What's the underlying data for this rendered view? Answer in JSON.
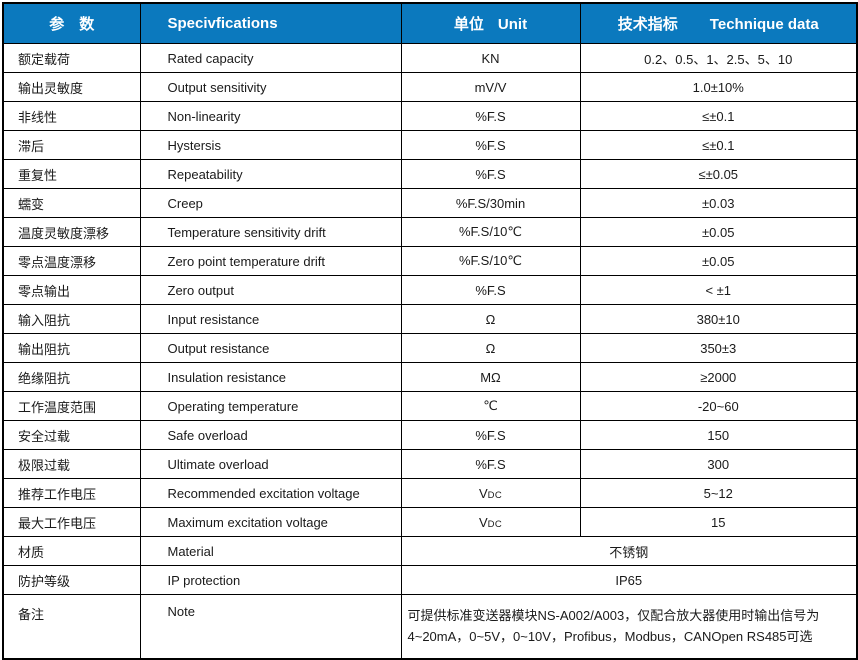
{
  "colors": {
    "header_bg": "#0b79be",
    "header_text": "#ffffff",
    "border": "#000000",
    "body_text": "#1a1a1a"
  },
  "table": {
    "headers": {
      "param": {
        "zh": "参　数"
      },
      "spec": {
        "en": "Specivfications"
      },
      "unit": {
        "zh": "单位",
        "en": "Unit"
      },
      "data": {
        "zh": "技术指标",
        "en": "Technique data"
      }
    },
    "rows": [
      {
        "param": "额定载荷",
        "spec": "Rated capacity",
        "unit": "KN",
        "value": "0.2、0.5、1、2.5、5、10"
      },
      {
        "param": "输出灵敏度",
        "spec": "Output sensitivity",
        "unit": "mV/V",
        "value": "1.0±10%"
      },
      {
        "param": "非线性",
        "spec": "Non-linearity",
        "unit": "%F.S",
        "value": "≤±0.1"
      },
      {
        "param": "滞后",
        "spec": "Hystersis",
        "unit": "%F.S",
        "value": "≤±0.1"
      },
      {
        "param": "重复性",
        "spec": "Repeatability",
        "unit": "%F.S",
        "value": "≤±0.05"
      },
      {
        "param": "蠕变",
        "spec": "Creep",
        "unit": "%F.S/30min",
        "value": "±0.03"
      },
      {
        "param": "温度灵敏度漂移",
        "spec": "Temperature sensitivity drift",
        "unit": "%F.S/10℃",
        "value": "±0.05"
      },
      {
        "param": "零点温度漂移",
        "spec": "Zero point temperature drift",
        "unit": "%F.S/10℃",
        "value": "±0.05"
      },
      {
        "param": "零点输出",
        "spec": "Zero output",
        "unit": "%F.S",
        "value": "< ±1"
      },
      {
        "param": "输入阻抗",
        "spec": "Input resistance",
        "unit": "Ω",
        "value": "380±10"
      },
      {
        "param": "输出阻抗",
        "spec": "Output resistance",
        "unit": "Ω",
        "value": "350±3"
      },
      {
        "param": "绝缘阻抗",
        "spec": "Insulation resistance",
        "unit": "MΩ",
        "value": "≥2000"
      },
      {
        "param": "工作温度范围",
        "spec": "Operating temperature",
        "unit": "℃",
        "value": "-20~60"
      },
      {
        "param": "安全过载",
        "spec": "Safe overload",
        "unit": "%F.S",
        "value": "150"
      },
      {
        "param": "极限过载",
        "spec": "Ultimate overload",
        "unit": "%F.S",
        "value": "300"
      },
      {
        "param": "推荐工作电压",
        "spec": "Recommended excitation voltage",
        "unit": "V",
        "unit_small": "DC",
        "value": "5~12"
      },
      {
        "param": "最大工作电压",
        "spec": "Maximum excitation voltage",
        "unit": "V",
        "unit_small": "DC",
        "value": "15"
      },
      {
        "param": "材质",
        "spec": "Material",
        "merged": true,
        "value": "不锈钢"
      },
      {
        "param": "防护等级",
        "spec": "IP protection",
        "merged": true,
        "value": "IP65"
      },
      {
        "param": "备注",
        "spec": "Note",
        "merged": true,
        "note": true,
        "value_lines": [
          "可提供标准变送器模块NS-A002/A003，仅配合放大器使用时输出信号为",
          "4~20mA，0~5V，0~10V，Profibus，Modbus，CANOpen RS485可选"
        ]
      }
    ]
  }
}
